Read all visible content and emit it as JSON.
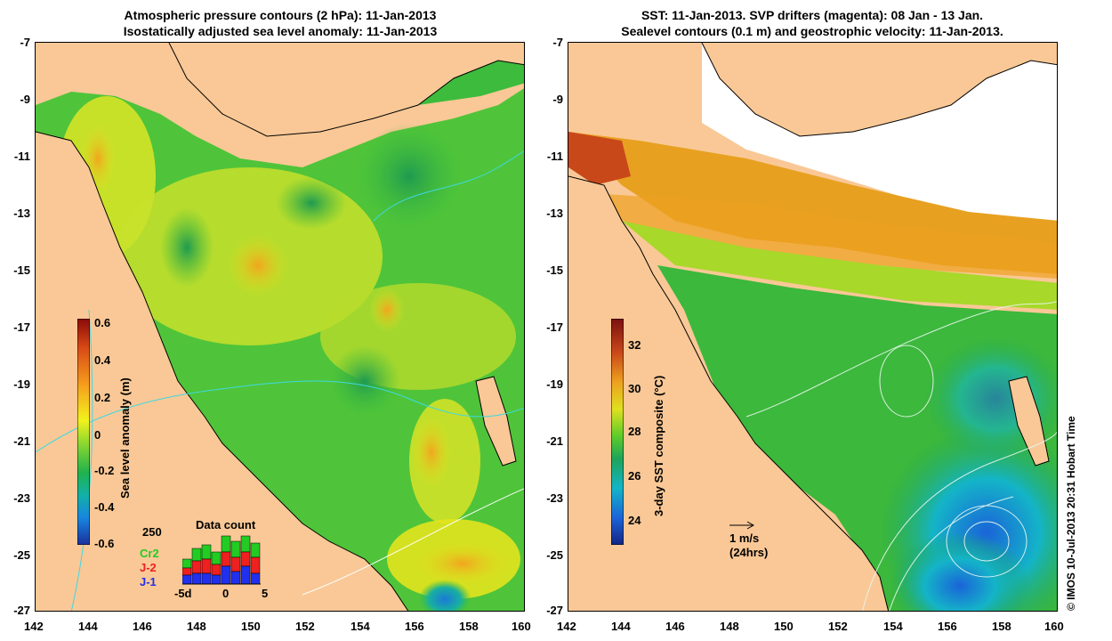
{
  "left_panel": {
    "title_line1": "Atmospheric pressure contours (2 hPa): 11-Jan-2013",
    "title_line2": "Isostatically adjusted sea level anomaly: 11-Jan-2013",
    "colorbar_label": "Sea level anomaly (m)",
    "colorbar_ticks": [
      "0.6",
      "0.4",
      "0.2",
      "0",
      "-0.2",
      "-0.4",
      "-0.6"
    ],
    "colorbar_colors": [
      "#8b0a0a",
      "#d94a16",
      "#f6a21d",
      "#f2f21c",
      "#8ed830",
      "#21b24c",
      "#12b0a8",
      "#1786e0",
      "#1a2f9c"
    ],
    "data_count": {
      "title": "Data count",
      "max_label": "250",
      "x_ticks": [
        "-5d",
        "0",
        "5"
      ],
      "legend": [
        {
          "label": "Cr2",
          "color": "#22cc22"
        },
        {
          "label": "J-2",
          "color": "#ee2020"
        },
        {
          "label": "J-1",
          "color": "#2030ee"
        }
      ]
    }
  },
  "right_panel": {
    "title_line1": "SST: 11-Jan-2013. SVP drifters (magenta): 08 Jan - 13 Jan.",
    "title_line2": "Sealevel contours (0.1 m) and geostrophic velocity: 11-Jan-2013.",
    "colorbar_label": "3-day SST composite (°C)",
    "colorbar_ticks": [
      "32",
      "30",
      "28",
      "26",
      "24"
    ],
    "colorbar_colors": [
      "#7a1010",
      "#c9481a",
      "#eea020",
      "#e0e020",
      "#5ccc2a",
      "#1ea45a",
      "#14b4c8",
      "#1a64d8",
      "#142484"
    ],
    "velocity_scale": "1 m/s",
    "velocity_note": "(24hrs)"
  },
  "axes": {
    "y_ticks": [
      "-7",
      "-9",
      "-11",
      "-13",
      "-15",
      "-17",
      "-19",
      "-21",
      "-23",
      "-25",
      "-27"
    ],
    "x_ticks": [
      "142",
      "144",
      "146",
      "148",
      "150",
      "152",
      "154",
      "156",
      "158",
      "160"
    ]
  },
  "copyright": "© IMOS 10-Jul-2013 20:31 Hobart Time",
  "colors": {
    "land": "#f9c896",
    "no_data": "#ffffff"
  }
}
